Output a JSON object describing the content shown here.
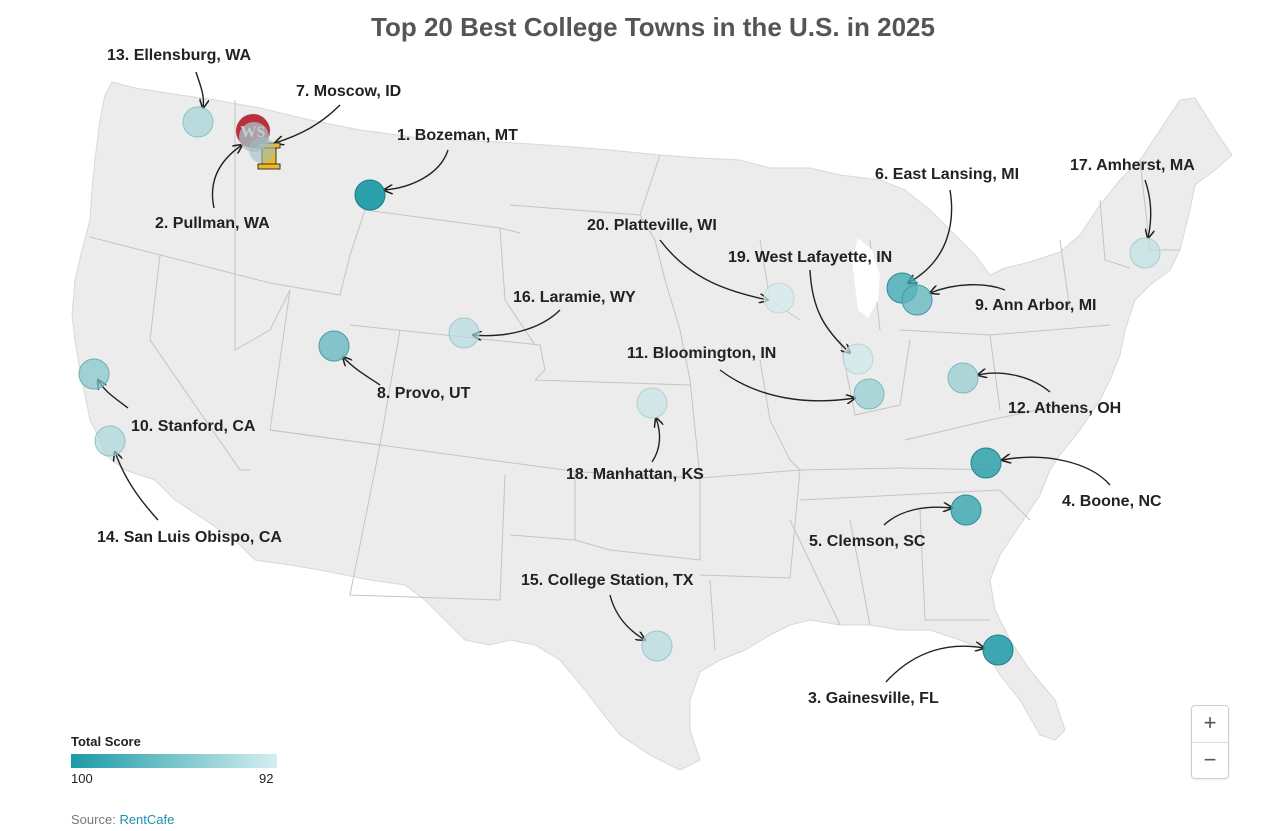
{
  "title": "Top 20 Best College Towns in the U.S. in 2025",
  "legend": {
    "title": "Total Score",
    "min_label": "100",
    "max_label": "92",
    "color_high": "#1b9aa6",
    "color_low": "#d5eef0"
  },
  "source": {
    "prefix": "Source:",
    "link_text": "RentCafe"
  },
  "zoom": {
    "in_label": "+",
    "out_label": "−"
  },
  "cities": [
    {
      "rank": 1,
      "label": "1. Bozeman, MT"
    },
    {
      "rank": 2,
      "label": "2. Pullman, WA"
    },
    {
      "rank": 3,
      "label": "3. Gainesville, FL"
    },
    {
      "rank": 4,
      "label": "4. Boone, NC"
    },
    {
      "rank": 5,
      "label": "5. Clemson, SC"
    },
    {
      "rank": 6,
      "label": "6. East Lansing, MI"
    },
    {
      "rank": 7,
      "label": "7. Moscow, ID"
    },
    {
      "rank": 8,
      "label": "8. Provo, UT"
    },
    {
      "rank": 9,
      "label": "9. Ann Arbor, MI"
    },
    {
      "rank": 10,
      "label": "10. Stanford, CA"
    },
    {
      "rank": 11,
      "label": "11. Bloomington, IN"
    },
    {
      "rank": 12,
      "label": "12. Athens, OH"
    },
    {
      "rank": 13,
      "label": "13. Ellensburg, WA"
    },
    {
      "rank": 14,
      "label": "14. San Luis Obispo, CA"
    },
    {
      "rank": 15,
      "label": "15. College Station, TX"
    },
    {
      "rank": 16,
      "label": "16. Laramie, WY"
    },
    {
      "rank": 17,
      "label": "17. Amherst, MA"
    },
    {
      "rank": 18,
      "label": "18. Manhattan, KS"
    },
    {
      "rank": 19,
      "label": "19. West Lafayette, IN"
    },
    {
      "rank": 20,
      "label": "20. Platteville, WI"
    }
  ]
}
